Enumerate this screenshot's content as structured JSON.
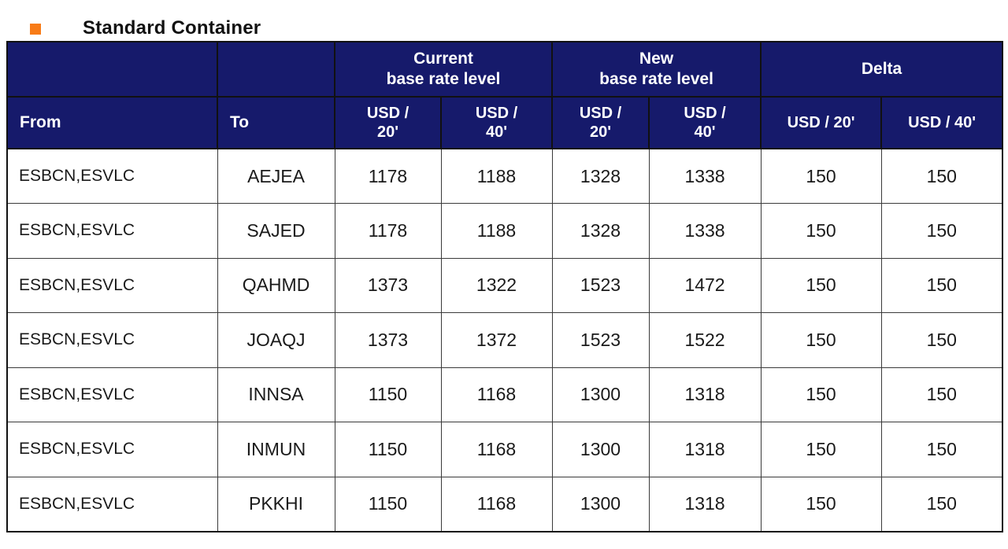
{
  "theme": {
    "header_bg": "#161A6B",
    "header_text": "#ffffff",
    "bullet_color": "#F87B16",
    "grid_line": "#3a3a3a",
    "page_bg": "#ffffff"
  },
  "title": "Standard Container",
  "table": {
    "groups": [
      {
        "label": "Current\nbase rate level",
        "span": 2
      },
      {
        "label": "New\nbase rate level",
        "span": 2
      },
      {
        "label": "Delta",
        "span": 2
      }
    ],
    "columns": [
      {
        "key": "from",
        "label": "From"
      },
      {
        "key": "to",
        "label": "To"
      },
      {
        "key": "cur20",
        "label": "USD /\n20'"
      },
      {
        "key": "cur40",
        "label": "USD /\n40'"
      },
      {
        "key": "new20",
        "label": "USD /\n20'"
      },
      {
        "key": "new40",
        "label": "USD /\n40'"
      },
      {
        "key": "delta20",
        "label": "USD / 20'"
      },
      {
        "key": "delta40",
        "label": "USD / 40'"
      }
    ],
    "rows": [
      [
        "ESBCN,ESVLC",
        "AEJEA",
        "1178",
        "1188",
        "1328",
        "1338",
        "150",
        "150"
      ],
      [
        "ESBCN,ESVLC",
        "SAJED",
        "1178",
        "1188",
        "1328",
        "1338",
        "150",
        "150"
      ],
      [
        "ESBCN,ESVLC",
        "QAHMD",
        "1373",
        "1322",
        "1523",
        "1472",
        "150",
        "150"
      ],
      [
        "ESBCN,ESVLC",
        "JOAQJ",
        "1373",
        "1372",
        "1523",
        "1522",
        "150",
        "150"
      ],
      [
        "ESBCN,ESVLC",
        "INNSA",
        "1150",
        "1168",
        "1300",
        "1318",
        "150",
        "150"
      ],
      [
        "ESBCN,ESVLC",
        "INMUN",
        "1150",
        "1168",
        "1300",
        "1318",
        "150",
        "150"
      ],
      [
        "ESBCN,ESVLC",
        "PKKHI",
        "1150",
        "1168",
        "1300",
        "1318",
        "150",
        "150"
      ]
    ]
  }
}
